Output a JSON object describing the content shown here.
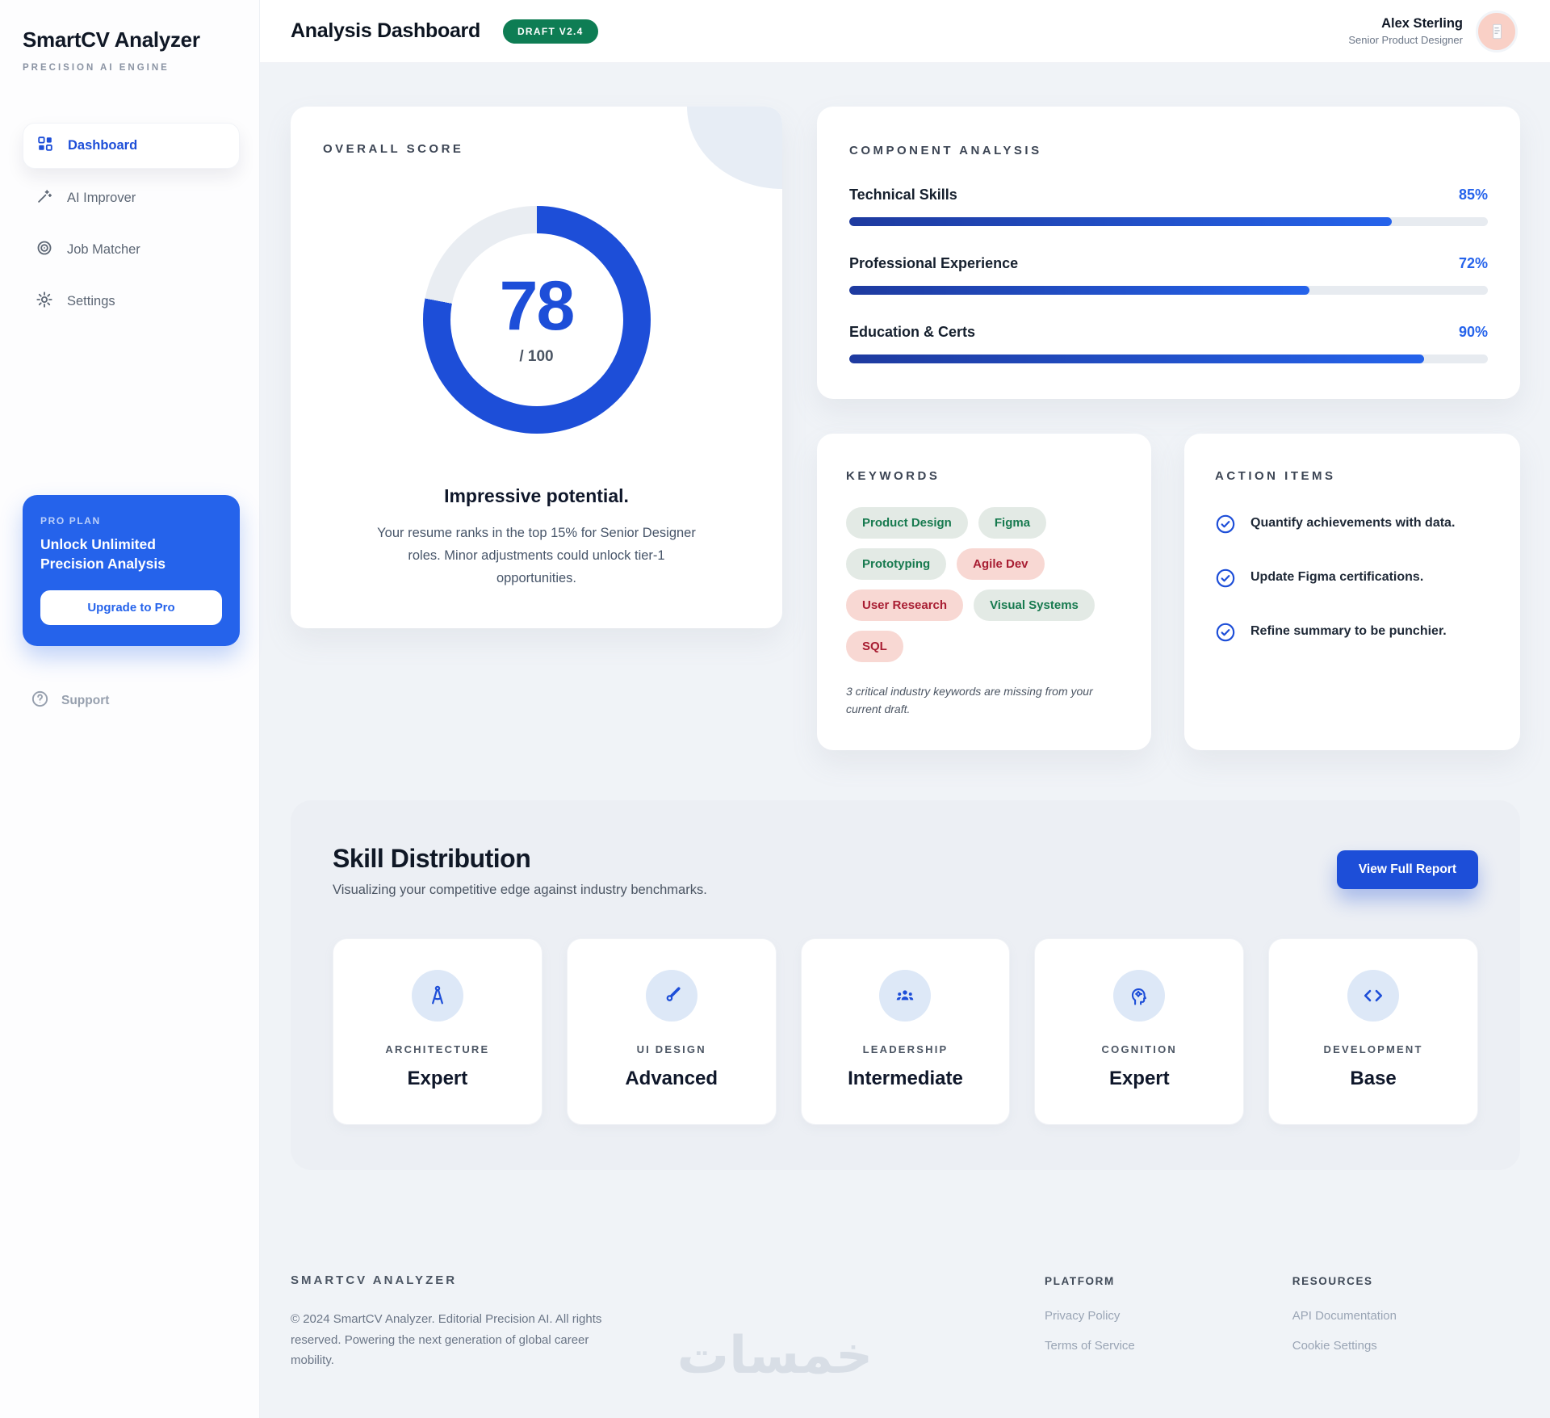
{
  "app": {
    "name": "SmartCV Analyzer",
    "tagline": "PRECISION AI ENGINE"
  },
  "sidebar": {
    "items": [
      {
        "label": "Dashboard",
        "icon": "dashboard-icon",
        "active": true
      },
      {
        "label": "AI Improver",
        "icon": "wand-icon",
        "active": false
      },
      {
        "label": "Job Matcher",
        "icon": "target-icon",
        "active": false
      },
      {
        "label": "Settings",
        "icon": "gear-icon",
        "active": false
      }
    ],
    "pro_card": {
      "eyebrow": "PRO PLAN",
      "title": "Unlock Unlimited Precision Analysis",
      "button": "Upgrade to Pro"
    },
    "support_label": "Support"
  },
  "header": {
    "title": "Analysis Dashboard",
    "badge": "DRAFT V2.4",
    "user": {
      "name": "Alex Sterling",
      "role": "Senior Product Designer"
    }
  },
  "overall_score": {
    "heading": "OVERALL SCORE",
    "score": 78,
    "denominator": "/ 100",
    "headline": "Impressive potential.",
    "description": "Your resume ranks in the top 15% for Senior Designer roles. Minor adjustments could unlock tier-1 opportunities."
  },
  "component_analysis": {
    "heading": "COMPONENT ANALYSIS",
    "items": [
      {
        "label": "Technical Skills",
        "value": 85,
        "display": "85%"
      },
      {
        "label": "Professional Experience",
        "value": 72,
        "display": "72%"
      },
      {
        "label": "Education & Certs",
        "value": 90,
        "display": "90%"
      }
    ]
  },
  "keywords": {
    "heading": "KEYWORDS",
    "tags": [
      {
        "label": "Product Design",
        "status": "present"
      },
      {
        "label": "Figma",
        "status": "present"
      },
      {
        "label": "Prototyping",
        "status": "present"
      },
      {
        "label": "Agile Dev",
        "status": "missing"
      },
      {
        "label": "User Research",
        "status": "missing"
      },
      {
        "label": "Visual Systems",
        "status": "present"
      },
      {
        "label": "SQL",
        "status": "missing"
      }
    ],
    "note": "3 critical industry keywords are missing from your current draft."
  },
  "action_items": {
    "heading": "ACTION ITEMS",
    "items": [
      "Quantify achievements with data.",
      "Update Figma certifications.",
      "Refine summary to be punchier."
    ]
  },
  "skills": {
    "title": "Skill Distribution",
    "subtitle": "Visualizing your competitive edge against industry benchmarks.",
    "button": "View Full Report",
    "cards": [
      {
        "label": "ARCHITECTURE",
        "level": "Expert",
        "icon": "compass-icon"
      },
      {
        "label": "UI DESIGN",
        "level": "Advanced",
        "icon": "brush-icon"
      },
      {
        "label": "LEADERSHIP",
        "level": "Intermediate",
        "icon": "team-icon"
      },
      {
        "label": "COGNITION",
        "level": "Expert",
        "icon": "mind-icon"
      },
      {
        "label": "DEVELOPMENT",
        "level": "Base",
        "icon": "code-icon"
      }
    ]
  },
  "footer": {
    "brand": "SMARTCV ANALYZER",
    "copyright": "© 2024 SmartCV Analyzer. Editorial Precision AI. All rights reserved. Powering the next generation of global career mobility.",
    "columns": [
      {
        "heading": "PLATFORM",
        "links": [
          "Privacy Policy",
          "Terms of Service"
        ]
      },
      {
        "heading": "RESOURCES",
        "links": [
          "API Documentation",
          "Cookie Settings"
        ]
      }
    ],
    "watermark": "خمسات"
  },
  "colors": {
    "primary_blue": "#1d4ed8",
    "accent_blue": "#2563eb",
    "badge_green": "#0e7d54",
    "tag_green_text": "#177a4f",
    "tag_green_bg": "#e3eae5",
    "tag_red_text": "#a81d32",
    "tag_red_bg": "#f8d8d3",
    "page_bg": "#f0f3f7",
    "donut_track": "#e9edf2"
  }
}
